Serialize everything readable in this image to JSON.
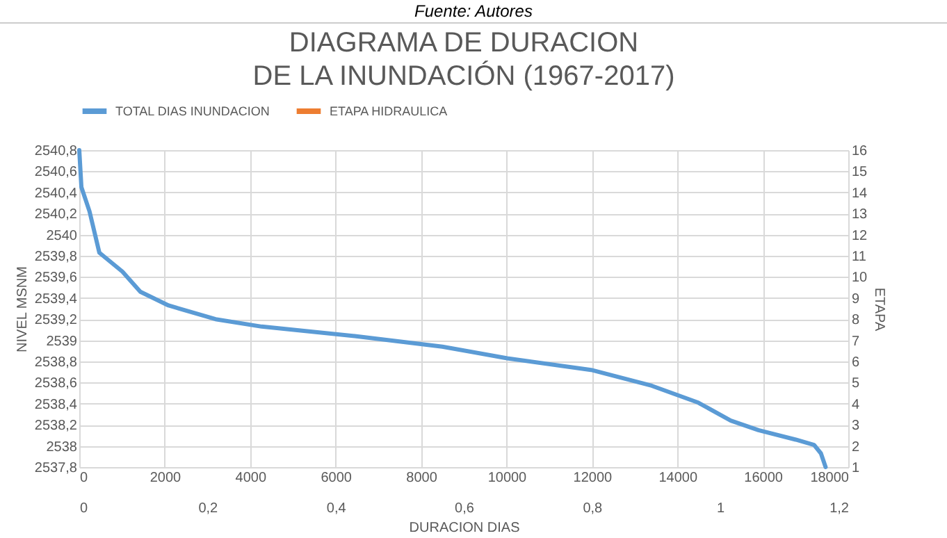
{
  "chart_data": {
    "type": "line",
    "title": "DIAGRAMA DE DURACION\nDE LA INUNDACIÓN (1967-2017)",
    "annotations": [
      "Fuente: Autores"
    ],
    "xlabel": "DURACION DIAS",
    "ylabel": "NIVEL MSNM",
    "y2label": "ETAPA",
    "x": [
      0,
      50,
      240,
      470,
      1010,
      1430,
      2090,
      3190,
      4270,
      6450,
      8500,
      10020,
      11980,
      13400,
      14490,
      15250,
      15900,
      16770,
      17200,
      17360,
      17470
    ],
    "series": [
      {
        "name": "TOTAL DIAS INUNDACION",
        "color": "#5b9bd5",
        "values": [
          2540.8,
          2540.45,
          2540.22,
          2539.83,
          2539.65,
          2539.46,
          2539.33,
          2539.2,
          2539.13,
          2539.04,
          2538.94,
          2538.83,
          2538.72,
          2538.57,
          2538.41,
          2538.24,
          2538.15,
          2538.06,
          2538.01,
          2537.93,
          2537.8
        ]
      },
      {
        "name": "ETAPA HIDRAULICA",
        "color": "#ed7d31",
        "axis": "y2",
        "values": [
          null,
          null,
          null,
          null,
          null,
          null,
          null,
          null,
          null,
          null,
          null,
          null,
          null,
          null,
          null,
          null,
          null,
          null,
          null,
          null,
          null
        ]
      }
    ],
    "xlim": [
      0,
      18000
    ],
    "xticks": [
      0,
      2000,
      4000,
      6000,
      8000,
      10000,
      12000,
      14000,
      16000,
      18000
    ],
    "x2lim": [
      0,
      1.2
    ],
    "x2ticks": [
      0,
      {
        "value": 0.2,
        "label": "0,2"
      },
      {
        "value": 0.4,
        "label": "0,4"
      },
      {
        "value": 0.6,
        "label": "0,6"
      },
      {
        "value": 0.8,
        "label": "0,8"
      },
      1,
      {
        "value": 1.2,
        "label": "1,2"
      }
    ],
    "ylim": [
      2537.8,
      2540.8
    ],
    "yticks": [
      {
        "value": 2537.8,
        "label": "2537,8"
      },
      2538,
      {
        "value": 2538.2,
        "label": "2538,2"
      },
      {
        "value": 2538.4,
        "label": "2538,4"
      },
      {
        "value": 2538.6,
        "label": "2538,6"
      },
      {
        "value": 2538.8,
        "label": "2538,8"
      },
      2539,
      {
        "value": 2539.2,
        "label": "2539,2"
      },
      {
        "value": 2539.4,
        "label": "2539,4"
      },
      {
        "value": 2539.6,
        "label": "2539,6"
      },
      {
        "value": 2539.8,
        "label": "2539,8"
      },
      2540,
      {
        "value": 2540.2,
        "label": "2540,2"
      },
      {
        "value": 2540.4,
        "label": "2540,4"
      },
      {
        "value": 2540.6,
        "label": "2540,6"
      },
      {
        "value": 2540.8,
        "label": "2540,8"
      }
    ],
    "y2lim": [
      1,
      16
    ],
    "y2ticks": [
      1,
      2,
      3,
      4,
      5,
      6,
      7,
      8,
      9,
      10,
      11,
      12,
      13,
      14,
      15,
      16
    ],
    "grid": true,
    "legend": "top",
    "marker": "none",
    "line_style": "solid"
  }
}
